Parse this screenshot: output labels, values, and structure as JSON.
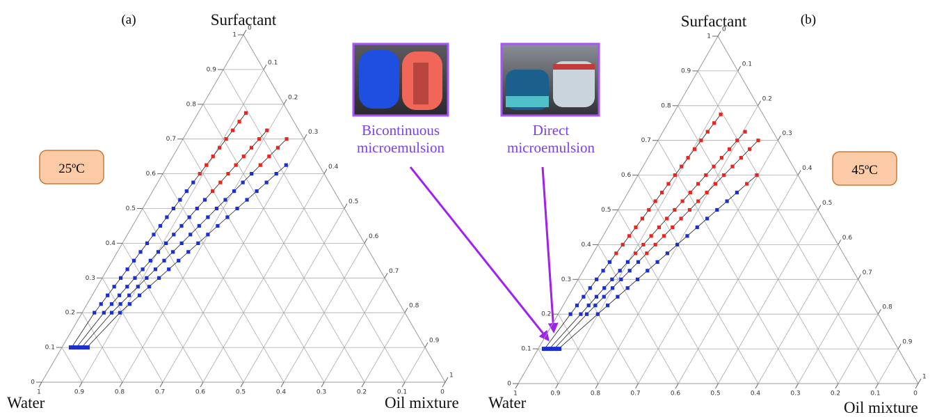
{
  "chart_data": [
    {
      "type": "ternary",
      "panel_label": "(a)",
      "temperature": "25ºC",
      "vertices": {
        "top": "Surfactant",
        "left": "Water",
        "right": "Oil mixture"
      },
      "ticks": [
        0,
        0.1,
        0.2,
        0.3,
        0.4,
        0.5,
        0.6,
        0.7,
        0.8,
        0.9,
        1
      ],
      "grid": true,
      "start_points": {
        "surfactant": 0.1,
        "oil": [
          0.024,
          0.036,
          0.049,
          0.062
        ],
        "color": "#1a2fd0"
      },
      "series": [
        {
          "color": "#1a2fd0",
          "transition_color": "#e8261f",
          "transition": 0.6,
          "oil_per_surfactant": 0.153,
          "surfactant": [
            0.2,
            0.225,
            0.25,
            0.275,
            0.3,
            0.325,
            0.35,
            0.375,
            0.4,
            0.425,
            0.45,
            0.475,
            0.5,
            0.525,
            0.55,
            0.575,
            0.6,
            0.625,
            0.65,
            0.675,
            0.7,
            0.725,
            0.75,
            0.775
          ]
        },
        {
          "color": "#1a2fd0",
          "transition_color": "#e8261f",
          "transition": 0.55,
          "oil_per_surfactant": 0.27,
          "surfactant": [
            0.2,
            0.225,
            0.25,
            0.275,
            0.3,
            0.325,
            0.35,
            0.375,
            0.4,
            0.425,
            0.45,
            0.475,
            0.5,
            0.525,
            0.55,
            0.575,
            0.6,
            0.625,
            0.65,
            0.675,
            0.7,
            0.725
          ]
        },
        {
          "color": "#1a2fd0",
          "transition_color": "#e8261f",
          "transition": 0.625,
          "oil_per_surfactant": 0.367,
          "surfactant": [
            0.2,
            0.225,
            0.25,
            0.275,
            0.3,
            0.325,
            0.35,
            0.375,
            0.4,
            0.425,
            0.45,
            0.475,
            0.5,
            0.525,
            0.55,
            0.575,
            0.6,
            0.625,
            0.65,
            0.675,
            0.7
          ]
        },
        {
          "color": "#1a2fd0",
          "oil_per_surfactant": 0.469,
          "surfactant": [
            0.2,
            0.225,
            0.25,
            0.275,
            0.3,
            0.325,
            0.35,
            0.375,
            0.4,
            0.425,
            0.45,
            0.475,
            0.5,
            0.525,
            0.55,
            0.575,
            0.6,
            0.625
          ]
        }
      ]
    },
    {
      "type": "ternary",
      "panel_label": "(b)",
      "temperature": "45ºC",
      "vertices": {
        "top": "Surfactant",
        "left": "Water",
        "right": "Oil mixture"
      },
      "ticks": [
        0,
        0.1,
        0.2,
        0.3,
        0.4,
        0.5,
        0.6,
        0.7,
        0.8,
        0.9,
        1
      ],
      "grid": true,
      "start_points": {
        "surfactant": 0.1,
        "oil": [
          0.016,
          0.028,
          0.04,
          0.051
        ],
        "color": "#1a2fd0"
      },
      "series": [
        {
          "color": "#1a2fd0",
          "transition_color": "#e8261f",
          "transition": 0.375,
          "oil_per_surfactant": 0.154,
          "surfactant": [
            0.2,
            0.225,
            0.25,
            0.275,
            0.3,
            0.325,
            0.35,
            0.375,
            0.4,
            0.425,
            0.45,
            0.475,
            0.5,
            0.525,
            0.55,
            0.575,
            0.6,
            0.625,
            0.65,
            0.675,
            0.7,
            0.725,
            0.75,
            0.775
          ]
        },
        {
          "color": "#1a2fd0",
          "transition_color": "#e8261f",
          "transition": 0.375,
          "oil_per_surfactant": 0.283,
          "surfactant": [
            0.2,
            0.225,
            0.25,
            0.275,
            0.3,
            0.325,
            0.35,
            0.375,
            0.4,
            0.425,
            0.45,
            0.475,
            0.5,
            0.525,
            0.55,
            0.575,
            0.6,
            0.625,
            0.65,
            0.675,
            0.7,
            0.725
          ]
        },
        {
          "color": "#1a2fd0",
          "transition_color": "#e8261f",
          "transition": 0.375,
          "oil_per_surfactant": 0.358,
          "surfactant": [
            0.2,
            0.225,
            0.25,
            0.275,
            0.3,
            0.325,
            0.35,
            0.375,
            0.4,
            0.425,
            0.45,
            0.475,
            0.5,
            0.525,
            0.55,
            0.575,
            0.6,
            0.625,
            0.65,
            0.675,
            0.7
          ]
        },
        {
          "color": "#1a2fd0",
          "transition_color": "#e8261f",
          "transition": 0.575,
          "oil_per_surfactant": 0.495,
          "surfactant": [
            0.2,
            0.225,
            0.25,
            0.275,
            0.3,
            0.325,
            0.35,
            0.375,
            0.4,
            0.425,
            0.45,
            0.475,
            0.5,
            0.525,
            0.55,
            0.575,
            0.6
          ]
        }
      ]
    }
  ],
  "annotations": [
    {
      "lines": [
        "Bicontinuous",
        "microemulsion"
      ]
    },
    {
      "lines": [
        "Direct",
        "microemulsion"
      ]
    }
  ]
}
